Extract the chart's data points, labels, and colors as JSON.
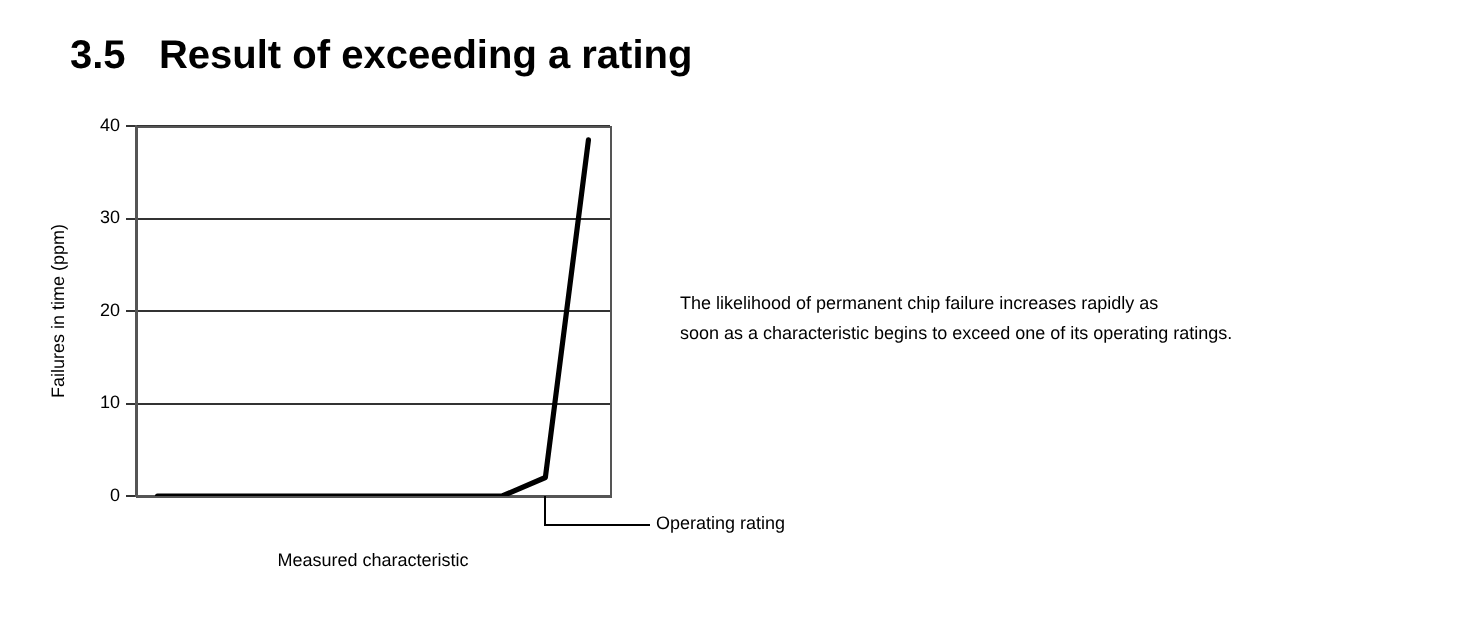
{
  "chart_data": {
    "type": "line",
    "title": "3.5   Result of exceeding a rating",
    "xlabel": "Measured characteristic",
    "ylabel": "Failures in time (ppm)",
    "categories": [
      null,
      null,
      null,
      null,
      null,
      null,
      null,
      null,
      null,
      null,
      null
    ],
    "series": [
      {
        "color": "#000000",
        "values": [
          0,
          0,
          0,
          0,
          0,
          0,
          0,
          0,
          0,
          2,
          38.5
        ]
      }
    ],
    "ylim": [
      0,
      40
    ],
    "yticks": [
      0,
      10,
      20,
      30,
      40
    ],
    "grid": "y",
    "legend": false,
    "marker": "none",
    "line_style": "solid",
    "tick_labels": "y",
    "annotations": [
      "The likelihood of permanent chip failure increases rapidly as\nsoon as a characteristic begins to exceed one of its operating ratings.",
      "Operating rating"
    ]
  }
}
